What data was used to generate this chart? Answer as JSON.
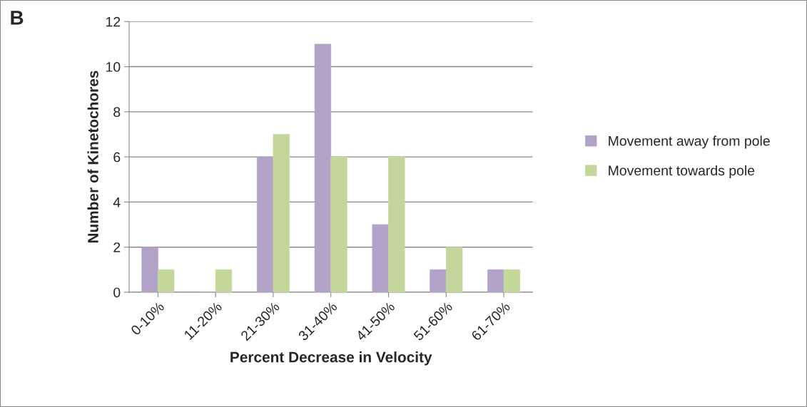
{
  "chart_data": {
    "type": "bar",
    "annotations": [
      "B"
    ],
    "xlabel": "Percent Decrease in Velocity",
    "ylabel": "Number of Kinetochores",
    "categories": [
      "0-10%",
      "11-20%",
      "21-30%",
      "31-40%",
      "41-50%",
      "51-60%",
      "61-70%"
    ],
    "series": [
      {
        "name": "Movement away from pole",
        "color": "#b3a2c7",
        "values": [
          2,
          0,
          6,
          11,
          3,
          1,
          1
        ]
      },
      {
        "name": "Movement towards pole",
        "color": "#c3d69b",
        "values": [
          1,
          1,
          7,
          6,
          6,
          2,
          1
        ]
      }
    ],
    "ylim": [
      0,
      12
    ],
    "yticks": [
      0,
      2,
      4,
      6,
      8,
      10,
      12
    ],
    "grid": "y",
    "legend": "right"
  }
}
